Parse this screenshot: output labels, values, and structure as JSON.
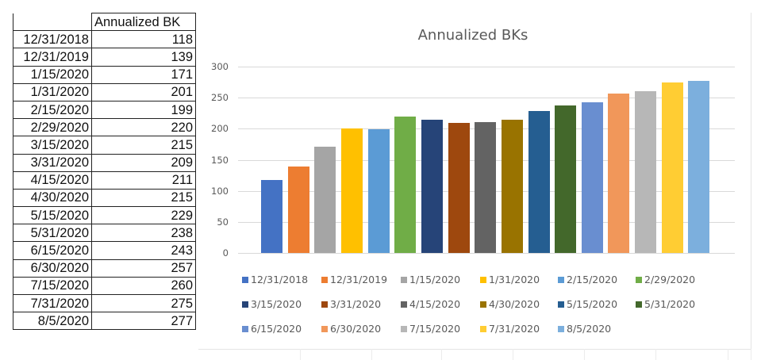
{
  "table": {
    "header": {
      "date": "",
      "value": "Annualized BK"
    },
    "rows": [
      {
        "date": "12/31/2018",
        "value": "118"
      },
      {
        "date": "12/31/2019",
        "value": "139"
      },
      {
        "date": "1/15/2020",
        "value": "171"
      },
      {
        "date": "1/31/2020",
        "value": "201"
      },
      {
        "date": "2/15/2020",
        "value": "199"
      },
      {
        "date": "2/29/2020",
        "value": "220"
      },
      {
        "date": "3/15/2020",
        "value": "215"
      },
      {
        "date": "3/31/2020",
        "value": "209"
      },
      {
        "date": "4/15/2020",
        "value": "211"
      },
      {
        "date": "4/30/2020",
        "value": "215"
      },
      {
        "date": "5/15/2020",
        "value": "229"
      },
      {
        "date": "5/31/2020",
        "value": "238"
      },
      {
        "date": "6/15/2020",
        "value": "243"
      },
      {
        "date": "6/30/2020",
        "value": "257"
      },
      {
        "date": "7/15/2020",
        "value": "260"
      },
      {
        "date": "7/31/2020",
        "value": "275"
      },
      {
        "date": "8/5/2020",
        "value": "277"
      }
    ]
  },
  "chart_data": {
    "type": "bar",
    "title": "Annualized BKs",
    "xlabel": "",
    "ylabel": "",
    "ylim": [
      0,
      300
    ],
    "yticks": [
      0,
      50,
      100,
      150,
      200,
      250,
      300
    ],
    "grid": true,
    "legend_position": "bottom",
    "categories": [
      "12/31/2018",
      "12/31/2019",
      "1/15/2020",
      "1/31/2020",
      "2/15/2020",
      "2/29/2020",
      "3/15/2020",
      "3/31/2020",
      "4/15/2020",
      "4/30/2020",
      "5/15/2020",
      "5/31/2020",
      "6/15/2020",
      "6/30/2020",
      "7/15/2020",
      "7/31/2020",
      "8/5/2020"
    ],
    "series": [
      {
        "name": "12/31/2018",
        "values": [
          118
        ],
        "color": "#4472C4"
      },
      {
        "name": "12/31/2019",
        "values": [
          139
        ],
        "color": "#ED7D31"
      },
      {
        "name": "1/15/2020",
        "values": [
          171
        ],
        "color": "#A5A5A5"
      },
      {
        "name": "1/31/2020",
        "values": [
          201
        ],
        "color": "#FFC000"
      },
      {
        "name": "2/15/2020",
        "values": [
          199
        ],
        "color": "#5B9BD5"
      },
      {
        "name": "2/29/2020",
        "values": [
          220
        ],
        "color": "#70AD47"
      },
      {
        "name": "3/15/2020",
        "values": [
          215
        ],
        "color": "#264478"
      },
      {
        "name": "3/31/2020",
        "values": [
          209
        ],
        "color": "#9E480E"
      },
      {
        "name": "4/15/2020",
        "values": [
          211
        ],
        "color": "#636363"
      },
      {
        "name": "4/30/2020",
        "values": [
          215
        ],
        "color": "#997300"
      },
      {
        "name": "5/15/2020",
        "values": [
          229
        ],
        "color": "#255E91"
      },
      {
        "name": "5/31/2020",
        "values": [
          238
        ],
        "color": "#43682B"
      },
      {
        "name": "6/15/2020",
        "values": [
          243
        ],
        "color": "#698ED0"
      },
      {
        "name": "6/30/2020",
        "values": [
          257
        ],
        "color": "#F1975A"
      },
      {
        "name": "7/15/2020",
        "values": [
          260
        ],
        "color": "#B7B7B7"
      },
      {
        "name": "7/31/2020",
        "values": [
          275
        ],
        "color": "#FFCD33"
      },
      {
        "name": "8/5/2020",
        "values": [
          277
        ],
        "color": "#7CAFDD"
      }
    ]
  }
}
